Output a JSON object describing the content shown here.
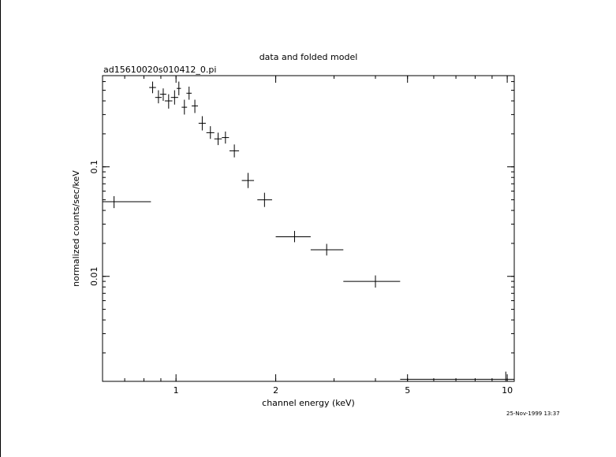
{
  "chart_data": {
    "type": "scatter",
    "title": "data and folded model",
    "subtitle": "ad15610020s010412_0.pi",
    "xlabel": "channel energy (keV)",
    "ylabel": "normalized counts/sec/keV",
    "xscale": "log",
    "yscale": "log",
    "xlim": [
      0.6,
      10.5
    ],
    "ylim": [
      0.0011,
      0.68
    ],
    "x_ticks": [
      {
        "value": 1,
        "label": "1"
      },
      {
        "value": 2,
        "label": "2"
      },
      {
        "value": 5,
        "label": "5"
      },
      {
        "value": 10,
        "label": "10"
      }
    ],
    "y_ticks": [
      {
        "value": 0.1,
        "label": "0.1"
      },
      {
        "value": 0.01,
        "label": "0.01"
      }
    ],
    "series": [
      {
        "points": [
          {
            "x": 0.65,
            "xlo": 0.6,
            "xhi": 0.84,
            "y": 0.048,
            "ylo": 0.042,
            "yhi": 0.054
          },
          {
            "x": 0.85,
            "xlo": 0.83,
            "xhi": 0.87,
            "y": 0.53,
            "ylo": 0.47,
            "yhi": 0.6
          },
          {
            "x": 0.885,
            "xlo": 0.865,
            "xhi": 0.905,
            "y": 0.43,
            "ylo": 0.38,
            "yhi": 0.5
          },
          {
            "x": 0.915,
            "xlo": 0.895,
            "xhi": 0.935,
            "y": 0.46,
            "ylo": 0.4,
            "yhi": 0.52
          },
          {
            "x": 0.95,
            "xlo": 0.925,
            "xhi": 0.975,
            "y": 0.4,
            "ylo": 0.34,
            "yhi": 0.46
          },
          {
            "x": 0.99,
            "xlo": 0.965,
            "xhi": 1.015,
            "y": 0.43,
            "ylo": 0.37,
            "yhi": 0.5
          },
          {
            "x": 1.02,
            "xlo": 1.005,
            "xhi": 1.035,
            "y": 0.52,
            "ylo": 0.45,
            "yhi": 0.6
          },
          {
            "x": 1.06,
            "xlo": 1.04,
            "xhi": 1.08,
            "y": 0.35,
            "ylo": 0.3,
            "yhi": 0.41
          },
          {
            "x": 1.095,
            "xlo": 1.075,
            "xhi": 1.115,
            "y": 0.47,
            "ylo": 0.41,
            "yhi": 0.54
          },
          {
            "x": 1.14,
            "xlo": 1.115,
            "xhi": 1.165,
            "y": 0.36,
            "ylo": 0.31,
            "yhi": 0.41
          },
          {
            "x": 1.2,
            "xlo": 1.17,
            "xhi": 1.23,
            "y": 0.25,
            "ylo": 0.215,
            "yhi": 0.29
          },
          {
            "x": 1.27,
            "xlo": 1.235,
            "xhi": 1.305,
            "y": 0.205,
            "ylo": 0.18,
            "yhi": 0.235
          },
          {
            "x": 1.34,
            "xlo": 1.305,
            "xhi": 1.375,
            "y": 0.18,
            "ylo": 0.158,
            "yhi": 0.205
          },
          {
            "x": 1.41,
            "xlo": 1.375,
            "xhi": 1.445,
            "y": 0.185,
            "ylo": 0.163,
            "yhi": 0.21
          },
          {
            "x": 1.5,
            "xlo": 1.45,
            "xhi": 1.55,
            "y": 0.14,
            "ylo": 0.122,
            "yhi": 0.16
          },
          {
            "x": 1.65,
            "xlo": 1.58,
            "xhi": 1.72,
            "y": 0.075,
            "ylo": 0.064,
            "yhi": 0.088
          },
          {
            "x": 1.85,
            "xlo": 1.76,
            "xhi": 1.95,
            "y": 0.05,
            "ylo": 0.043,
            "yhi": 0.058
          },
          {
            "x": 2.28,
            "xlo": 2.0,
            "xhi": 2.55,
            "y": 0.023,
            "ylo": 0.0205,
            "yhi": 0.026
          },
          {
            "x": 2.85,
            "xlo": 2.55,
            "xhi": 3.2,
            "y": 0.0175,
            "ylo": 0.0155,
            "yhi": 0.0198
          },
          {
            "x": 4.0,
            "xlo": 3.2,
            "xhi": 4.75,
            "y": 0.009,
            "ylo": 0.0079,
            "yhi": 0.0102
          },
          {
            "x": 9.9,
            "xlo": 4.75,
            "xhi": 10.5,
            "y": 0.00115,
            "ylo": 0.00105,
            "yhi": 0.00135
          }
        ]
      }
    ],
    "timestamp": "25-Nov-1999 13:37"
  }
}
